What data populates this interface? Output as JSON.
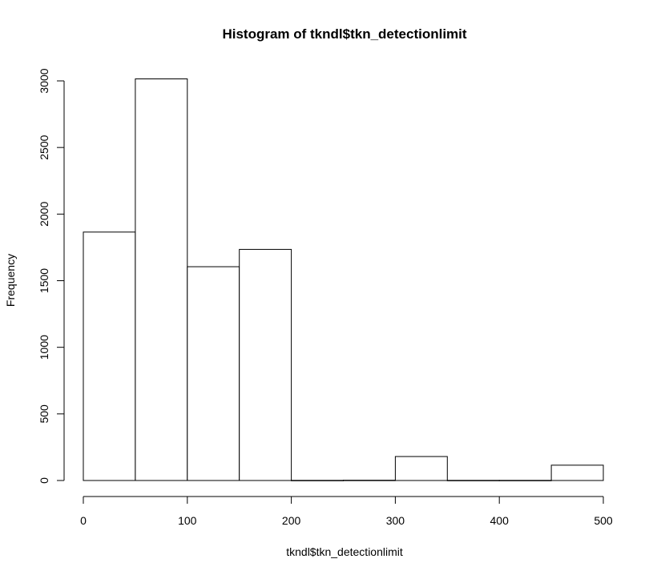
{
  "chart_data": {
    "type": "bar",
    "title": "Histogram of tkndl$tkn_detectionlimit",
    "xlabel": "tkndl$tkn_detectionlimit",
    "ylabel": "Frequency",
    "bins": [
      {
        "x0": 0,
        "x1": 50,
        "count": 1865
      },
      {
        "x0": 50,
        "x1": 100,
        "count": 3015
      },
      {
        "x0": 100,
        "x1": 150,
        "count": 1605
      },
      {
        "x0": 150,
        "x1": 200,
        "count": 1735
      },
      {
        "x0": 200,
        "x1": 250,
        "count": 1
      },
      {
        "x0": 250,
        "x1": 300,
        "count": 2
      },
      {
        "x0": 300,
        "x1": 350,
        "count": 180
      },
      {
        "x0": 350,
        "x1": 400,
        "count": 1
      },
      {
        "x0": 400,
        "x1": 450,
        "count": 1
      },
      {
        "x0": 450,
        "x1": 500,
        "count": 115
      }
    ],
    "xlim": [
      0,
      500
    ],
    "ylim": [
      0,
      3000
    ],
    "x_ticks": [
      "0",
      "100",
      "200",
      "300",
      "400",
      "500"
    ],
    "y_ticks": [
      "0",
      "500",
      "1000",
      "1500",
      "2000",
      "2500",
      "3000"
    ],
    "grid": false,
    "legend": "none"
  }
}
